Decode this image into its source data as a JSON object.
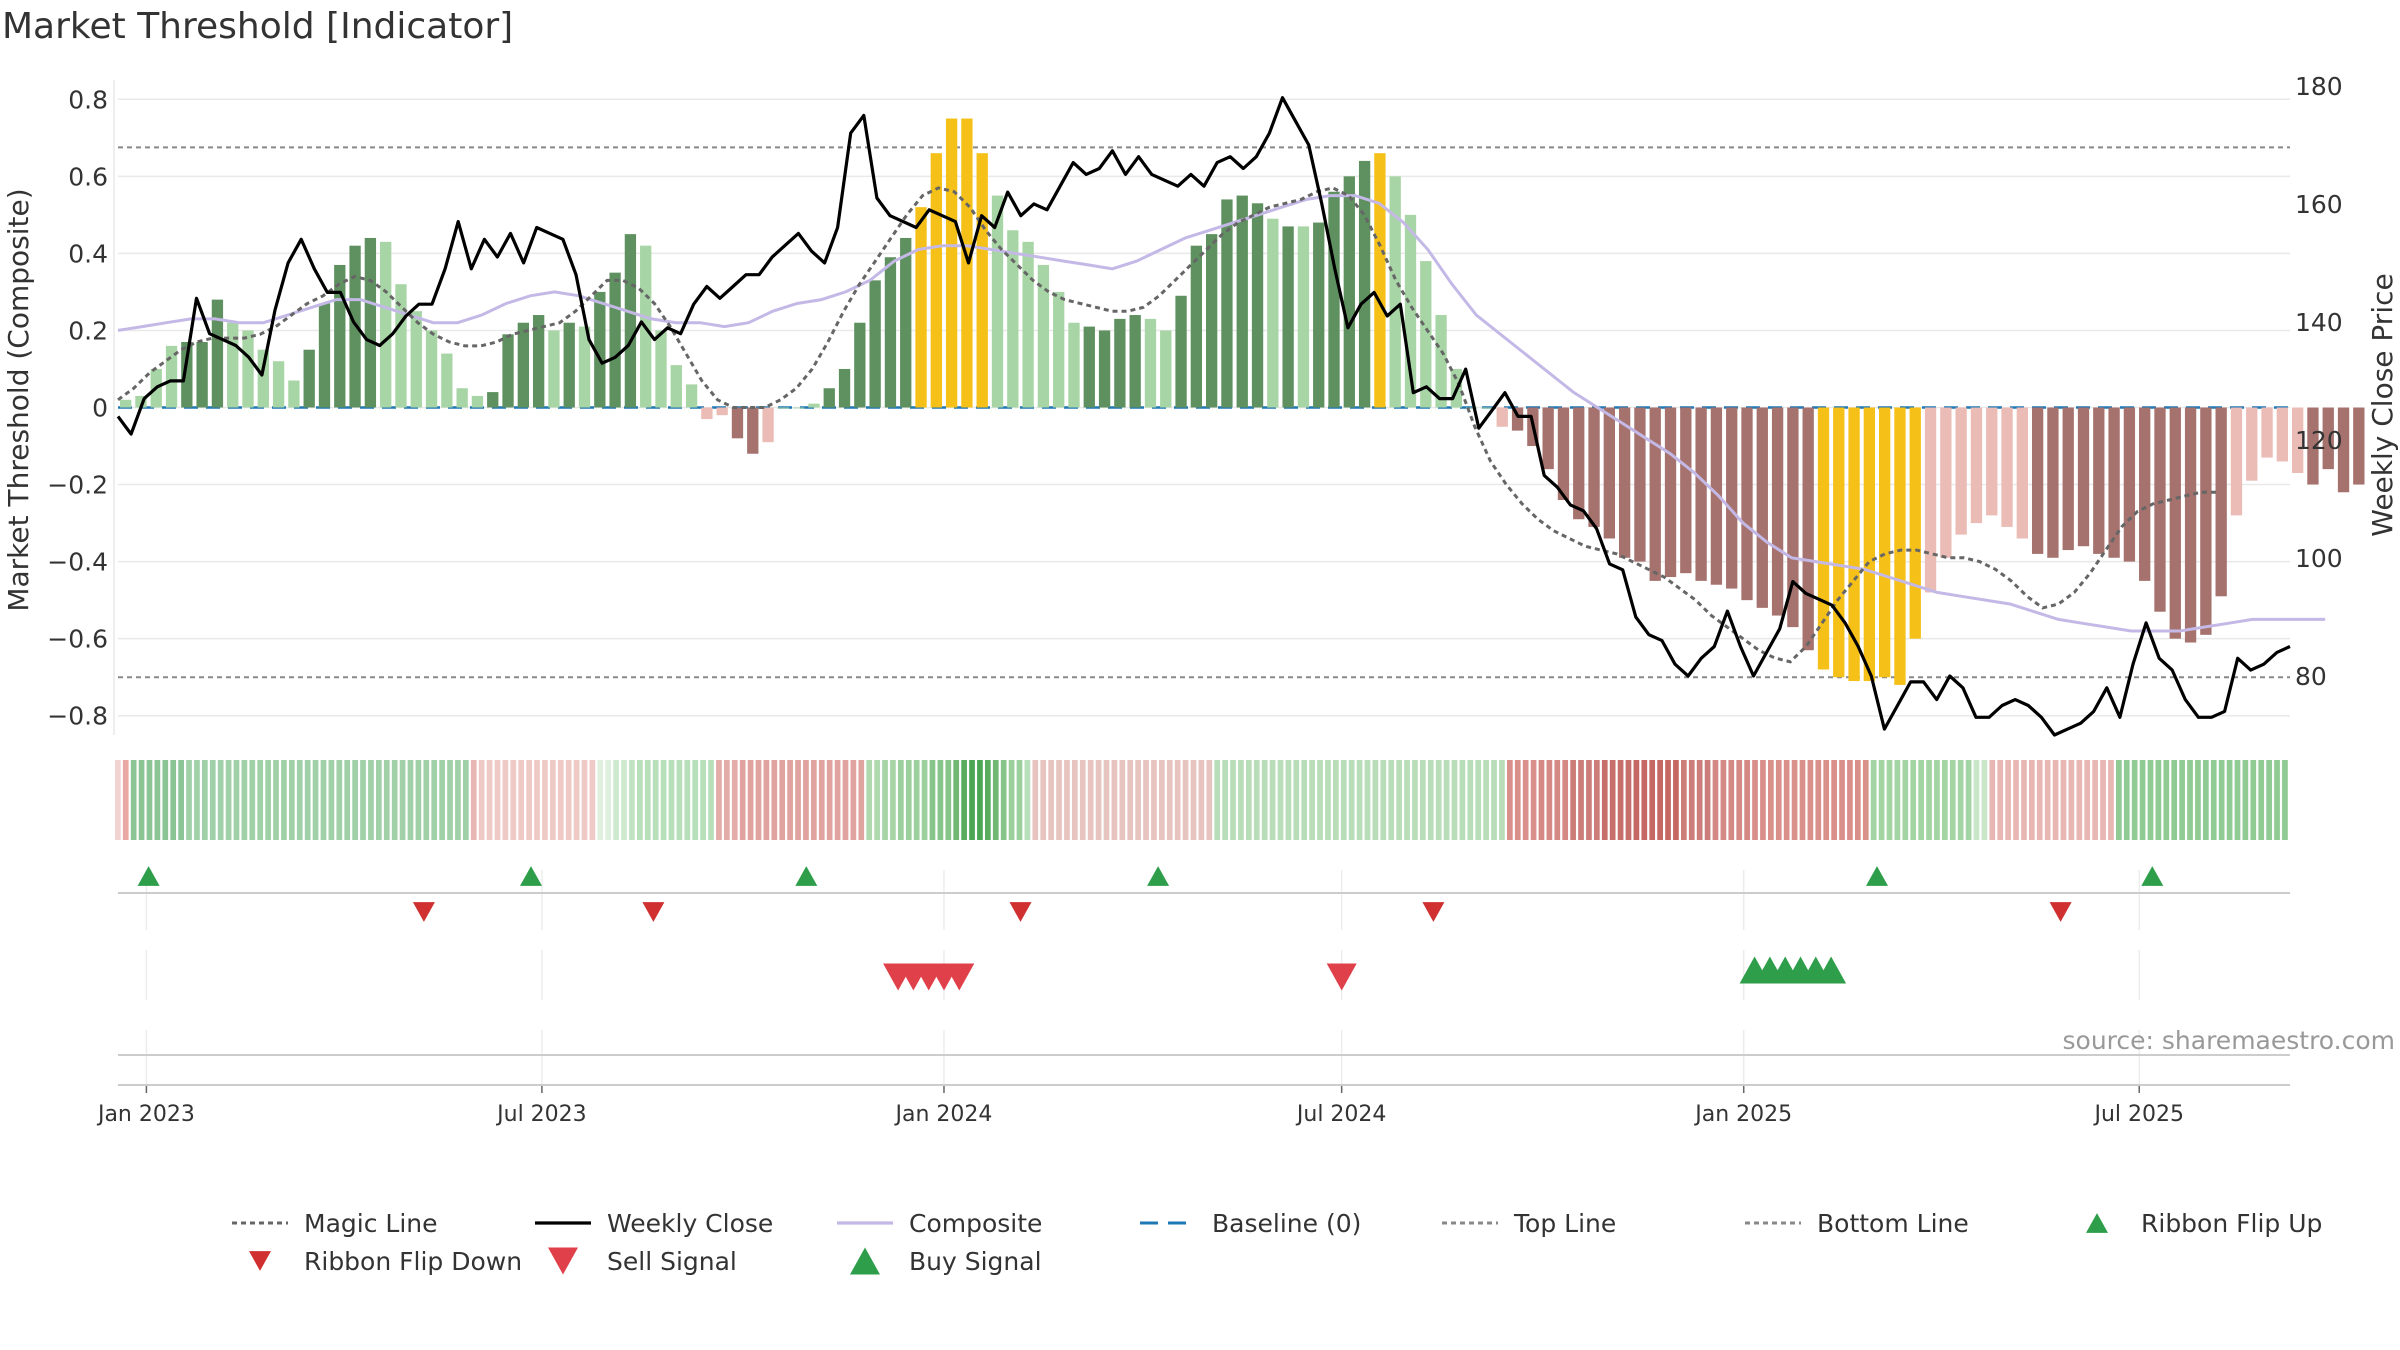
{
  "chart_data": {
    "type": "bar",
    "title": "Market Threshold [Indicator]",
    "ylabel": "Market Threshold (Composite)",
    "y2label": "Weekly Close Price",
    "source": "source: sharemaestro.com",
    "x_start": "2022-12-19",
    "x_end": "2025-09-08",
    "xticks": [
      "Jan 2023",
      "Jul 2023",
      "Jan 2024",
      "Jul 2024",
      "Jan 2025",
      "Jul 2025"
    ],
    "ylim": [
      -0.85,
      0.85
    ],
    "yticks": [
      -0.8,
      -0.6,
      -0.4,
      -0.2,
      0,
      0.2,
      0.4,
      0.6,
      0.8
    ],
    "ytick_labels": [
      "−0.8",
      "−0.6",
      "−0.4",
      "−0.2",
      "0",
      "0.2",
      "0.4",
      "0.6",
      "0.8"
    ],
    "y2lim": [
      70,
      181
    ],
    "y2ticks": [
      80,
      100,
      120,
      140,
      160,
      180
    ],
    "top_line": 0.675,
    "bottom_line": -0.7,
    "baseline": 0,
    "grid": true,
    "legend_position": "bottom",
    "colors": {
      "strong_green": "#5f9160",
      "light_green": "#a8d5a5",
      "strong_red": "#a6726e",
      "light_red": "#ebbcb6",
      "extreme": "#f5c017",
      "weekly_close": "#000000",
      "magic_line": "#666666",
      "composite": "#c4b9e6",
      "baseline": "#1f77b4",
      "ribbon_flip_up": "#2e9e4a",
      "ribbon_flip_down": "#d03030",
      "sell_signal": "#e0404a",
      "buy_signal": "#2e9e4a"
    },
    "bars": {
      "values": [
        0.02,
        0.03,
        0.1,
        0.16,
        0.17,
        0.17,
        0.28,
        0.22,
        0.2,
        0.15,
        0.12,
        0.07,
        0.15,
        0.27,
        0.37,
        0.42,
        0.44,
        0.43,
        0.32,
        0.25,
        0.2,
        0.14,
        0.05,
        0.03,
        0.04,
        0.19,
        0.22,
        0.24,
        0.2,
        0.22,
        0.21,
        0.3,
        0.35,
        0.45,
        0.42,
        0.2,
        0.11,
        0.06,
        -0.03,
        -0.02,
        -0.08,
        -0.12,
        -0.09,
        0.0,
        0.0,
        0.01,
        0.05,
        0.1,
        0.22,
        0.33,
        0.39,
        0.44,
        0.52,
        0.66,
        0.75,
        0.75,
        0.66,
        0.55,
        0.46,
        0.43,
        0.37,
        0.3,
        0.22,
        0.21,
        0.2,
        0.23,
        0.24,
        0.23,
        0.2,
        0.29,
        0.42,
        0.45,
        0.54,
        0.55,
        0.53,
        0.49,
        0.47,
        0.47,
        0.48,
        0.56,
        0.6,
        0.64,
        0.66,
        0.6,
        0.5,
        0.38,
        0.24,
        0.1,
        0.0,
        0.0,
        -0.05,
        -0.06,
        -0.1,
        -0.16,
        -0.24,
        -0.29,
        -0.31,
        -0.34,
        -0.39,
        -0.4,
        -0.45,
        -0.44,
        -0.43,
        -0.45,
        -0.46,
        -0.47,
        -0.5,
        -0.52,
        -0.54,
        -0.57,
        -0.63,
        -0.68,
        -0.7,
        -0.71,
        -0.71,
        -0.7,
        -0.72,
        -0.6,
        -0.48,
        -0.39,
        -0.33,
        -0.3,
        -0.28,
        -0.31,
        -0.34,
        -0.38,
        -0.39,
        -0.37,
        -0.36,
        -0.38,
        -0.39,
        -0.4,
        -0.45,
        -0.53,
        -0.6,
        -0.61,
        -0.59,
        -0.49,
        -0.28,
        -0.19,
        -0.13,
        -0.14,
        -0.17,
        -0.2,
        -0.16,
        -0.22,
        -0.2
      ],
      "classes": [
        "LG",
        "LG",
        "LG",
        "LG",
        "SG",
        "SG",
        "SG",
        "LG",
        "LG",
        "LG",
        "LG",
        "LG",
        "SG",
        "SG",
        "SG",
        "SG",
        "SG",
        "LG",
        "LG",
        "LG",
        "LG",
        "LG",
        "LG",
        "LG",
        "SG",
        "SG",
        "SG",
        "SG",
        "LG",
        "SG",
        "LG",
        "SG",
        "SG",
        "SG",
        "LG",
        "LG",
        "LG",
        "LG",
        "LR",
        "LR",
        "SR",
        "SR",
        "LR",
        "LG",
        "LG",
        "LG",
        "SG",
        "SG",
        "SG",
        "SG",
        "SG",
        "SG",
        "Y",
        "Y",
        "Y",
        "Y",
        "Y",
        "LG",
        "LG",
        "LG",
        "LG",
        "LG",
        "LG",
        "SG",
        "SG",
        "SG",
        "SG",
        "LG",
        "LG",
        "SG",
        "SG",
        "SG",
        "SG",
        "SG",
        "SG",
        "LG",
        "SG",
        "LG",
        "SG",
        "SG",
        "SG",
        "SG",
        "Y",
        "LG",
        "LG",
        "LG",
        "LG",
        "LG",
        "LG",
        "LG",
        "LR",
        "SR",
        "SR",
        "SR",
        "SR",
        "SR",
        "SR",
        "SR",
        "SR",
        "SR",
        "SR",
        "SR",
        "SR",
        "SR",
        "SR",
        "SR",
        "SR",
        "SR",
        "SR",
        "SR",
        "SR",
        "Y",
        "Y",
        "Y",
        "Y",
        "Y",
        "Y",
        "Y",
        "LR",
        "LR",
        "LR",
        "LR",
        "LR",
        "LR",
        "LR",
        "SR",
        "SR",
        "SR",
        "SR",
        "SR",
        "SR",
        "SR",
        "SR",
        "SR",
        "SR",
        "SR",
        "SR",
        "SR",
        "LR",
        "LR",
        "LR",
        "LR",
        "LR",
        "SR",
        "SR",
        "SR",
        "SR",
        "SR",
        "LR"
      ]
    },
    "weekly_close": [
      124,
      121,
      127,
      129,
      130,
      130,
      144,
      138,
      137,
      136,
      134,
      131,
      142,
      150,
      154,
      149,
      145,
      145,
      140,
      137,
      136,
      138,
      141,
      143,
      143,
      149,
      157,
      149,
      154,
      151,
      155,
      150,
      156,
      155,
      154,
      148,
      137,
      133,
      134,
      136,
      140,
      137,
      139,
      138,
      143,
      146,
      144,
      146,
      148,
      148,
      151,
      153,
      155,
      152,
      150,
      156,
      172,
      175,
      161,
      158,
      157,
      156,
      159,
      158,
      157,
      150,
      158,
      156,
      162,
      158,
      160,
      159,
      163,
      167,
      165,
      166,
      169,
      165,
      168,
      165,
      164,
      163,
      165,
      163,
      167,
      168,
      166,
      168,
      172,
      178,
      174,
      170,
      160,
      149,
      139,
      143,
      145,
      141,
      143,
      128,
      129,
      127,
      127,
      132,
      122,
      125,
      128,
      124,
      124,
      114,
      112,
      109,
      108,
      105,
      99,
      98,
      90,
      87,
      86,
      82,
      80,
      83,
      85,
      91,
      85,
      80,
      84,
      88,
      96,
      94,
      93,
      92,
      89,
      85,
      80,
      71,
      75,
      79,
      79,
      76,
      80,
      78,
      73,
      73,
      75,
      76,
      75,
      73,
      70,
      71,
      72,
      74,
      78,
      73,
      82,
      89,
      83,
      81,
      76,
      73,
      73,
      74,
      83,
      81,
      82,
      84,
      85
    ]
  },
  "chart_extras": {
    "magic_line": [
      0.02,
      0.05,
      0.09,
      0.12,
      0.15,
      0.17,
      0.18,
      0.18,
      0.18,
      0.19,
      0.21,
      0.24,
      0.27,
      0.29,
      0.32,
      0.34,
      0.33,
      0.3,
      0.26,
      0.22,
      0.19,
      0.17,
      0.16,
      0.16,
      0.17,
      0.19,
      0.2,
      0.21,
      0.22,
      0.25,
      0.29,
      0.33,
      0.33,
      0.31,
      0.27,
      0.21,
      0.14,
      0.07,
      0.02,
      0.0,
      0.0,
      0.0,
      0.02,
      0.05,
      0.1,
      0.17,
      0.25,
      0.32,
      0.38,
      0.44,
      0.5,
      0.55,
      0.57,
      0.56,
      0.52,
      0.46,
      0.41,
      0.37,
      0.33,
      0.3,
      0.28,
      0.27,
      0.26,
      0.25,
      0.25,
      0.26,
      0.29,
      0.33,
      0.37,
      0.41,
      0.45,
      0.48,
      0.5,
      0.52,
      0.53,
      0.54,
      0.56,
      0.57,
      0.55,
      0.5,
      0.42,
      0.33,
      0.26,
      0.2,
      0.14,
      0.06,
      -0.05,
      -0.14,
      -0.2,
      -0.25,
      -0.29,
      -0.32,
      -0.34,
      -0.36,
      -0.37,
      -0.38,
      -0.4,
      -0.42,
      -0.44,
      -0.47,
      -0.5,
      -0.54,
      -0.57,
      -0.6,
      -0.63,
      -0.65,
      -0.66,
      -0.62,
      -0.56,
      -0.5,
      -0.45,
      -0.4,
      -0.38,
      -0.37,
      -0.37,
      -0.38,
      -0.39,
      -0.39,
      -0.4,
      -0.42,
      -0.45,
      -0.49,
      -0.52,
      -0.51,
      -0.48,
      -0.43,
      -0.37,
      -0.31,
      -0.27,
      -0.25,
      -0.24,
      -0.23,
      -0.22,
      -0.22
    ],
    "magic_line_x": [
      0,
      2,
      4,
      6,
      8,
      10,
      12,
      14,
      16,
      18,
      20,
      22,
      24,
      26,
      28,
      30,
      32,
      34,
      36,
      38,
      40,
      42,
      44,
      46,
      48,
      50,
      52,
      54,
      56,
      58,
      60,
      62,
      64,
      66,
      68,
      70,
      72,
      74,
      76,
      78,
      80,
      82,
      84,
      86,
      88,
      90,
      92,
      94,
      96,
      98,
      100,
      102,
      104,
      106,
      108,
      110,
      112,
      114,
      116,
      118,
      120,
      122,
      124,
      126,
      128,
      130,
      132,
      134,
      136,
      138,
      140,
      142,
      144,
      146,
      148,
      150,
      152,
      154,
      156,
      158,
      160,
      162,
      164,
      166,
      168,
      170,
      172,
      174,
      176,
      178,
      180,
      182,
      184,
      186,
      188,
      190,
      192,
      194,
      196,
      198,
      200,
      202,
      204,
      206,
      208,
      210,
      212,
      214,
      216,
      218,
      220,
      222,
      224,
      226,
      228,
      230,
      232,
      234,
      236,
      238,
      240,
      242,
      244,
      246,
      248,
      250,
      252,
      254,
      256,
      258,
      260,
      262,
      264,
      266,
      268,
      270
    ],
    "composite": [
      0.2,
      0.21,
      0.22,
      0.23,
      0.23,
      0.22,
      0.22,
      0.24,
      0.26,
      0.28,
      0.28,
      0.26,
      0.24,
      0.22,
      0.22,
      0.24,
      0.27,
      0.29,
      0.3,
      0.29,
      0.27,
      0.25,
      0.23,
      0.22,
      0.22,
      0.21,
      0.22,
      0.25,
      0.27,
      0.28,
      0.3,
      0.33,
      0.38,
      0.41,
      0.42,
      0.42,
      0.41,
      0.4,
      0.39,
      0.38,
      0.37,
      0.36,
      0.38,
      0.41,
      0.44,
      0.46,
      0.48,
      0.5,
      0.52,
      0.54,
      0.55,
      0.55,
      0.53,
      0.48,
      0.41,
      0.32,
      0.24,
      0.19,
      0.14,
      0.09,
      0.04,
      0.0,
      -0.04,
      -0.08,
      -0.12,
      -0.17,
      -0.23,
      -0.3,
      -0.35,
      -0.39,
      -0.4,
      -0.41,
      -0.42,
      -0.44,
      -0.46,
      -0.48,
      -0.49,
      -0.5,
      -0.51,
      -0.53,
      -0.55,
      -0.56,
      -0.57,
      -0.58,
      -0.58,
      -0.58,
      -0.57,
      -0.56,
      -0.55,
      -0.55,
      -0.55,
      -0.55
    ],
    "composite_x": [
      0,
      3,
      6,
      9,
      12,
      15,
      18,
      21,
      24,
      27,
      30,
      33,
      36,
      39,
      42,
      45,
      48,
      51,
      54,
      57,
      60,
      63,
      66,
      69,
      72,
      75,
      78,
      81,
      84,
      87,
      90,
      93,
      96,
      99,
      102,
      105,
      108,
      111,
      114,
      117,
      120,
      123,
      126,
      129,
      132,
      135,
      138,
      141,
      144,
      147,
      150,
      153,
      156,
      159,
      162,
      165,
      168,
      171,
      174,
      177,
      180,
      183,
      186,
      189,
      192,
      195,
      198,
      201,
      204,
      207,
      210,
      213,
      216,
      219,
      222,
      225,
      228,
      231,
      234,
      237,
      240,
      243,
      246,
      249,
      252,
      255,
      258,
      261,
      264,
      267,
      270,
      273
    ],
    "ribbon": {
      "colors": [
        "#f1d4d2",
        "#e9a8a4",
        "#8bc596",
        "#8bc596",
        "#8bc596",
        "#8bc596",
        "#8bc596",
        "#8bc596",
        "#8bc596",
        "#9fd0a7",
        "#9fd0a7",
        "#9fd0a7",
        "#9fd0a7",
        "#9fd0a7",
        "#9fd0a7",
        "#9fd0a7",
        "#9fd0a7",
        "#9fd0a7",
        "#9fd0a7",
        "#9fd0a7",
        "#9fd0a7",
        "#9fd0a7",
        "#9fd0a7",
        "#9fd0a7",
        "#9fd0a7",
        "#9fd0a7",
        "#9fd0a7",
        "#9fd0a7",
        "#9fd0a7",
        "#9fd0a7",
        "#9fd0a7",
        "#9fd0a7",
        "#9fd0a7",
        "#9fd0a7",
        "#9fd0a7",
        "#9fd0a7",
        "#9fd0a7",
        "#9fd0a7",
        "#9fd0a7",
        "#9fd0a7",
        "#9fd0a7",
        "#9fd0a7",
        "#9fd0a7",
        "#9fd0a7",
        "#9fd0a7",
        "#e8b7b3",
        "#efc9c6",
        "#efc9c6",
        "#efc9c6",
        "#efc9c6",
        "#efc9c6",
        "#efc9c6",
        "#efc9c6",
        "#efc9c6",
        "#efc9c6",
        "#efc9c6",
        "#efc9c6",
        "#efc9c6",
        "#efc9c6",
        "#efc9c6",
        "#efc9c6",
        "#dff0df",
        "#dff0df",
        "#cfe9cf",
        "#cfe9cf",
        "#c1e3c3",
        "#b7dfb9",
        "#b7dfb9",
        "#b7dfb9",
        "#b7dfb9",
        "#b7dfb9",
        "#b7dfb9",
        "#b7dfb9",
        "#b7dfb9",
        "#b7dfb9",
        "#b7dfb9",
        "#e3aca8",
        "#e3aca8",
        "#e3aca8",
        "#e0a39f",
        "#e0a39f",
        "#e0a39f",
        "#e0a39f",
        "#e0a39f",
        "#e0a39f",
        "#e0a39f",
        "#e0a39f",
        "#e0a39f",
        "#e0a39f",
        "#e0a39f",
        "#e0a39f",
        "#e0a39f",
        "#e0a39f",
        "#e0a39f",
        "#e0a39f",
        "#aed8ad",
        "#aed8ad",
        "#a7d5a6",
        "#a7d5a6",
        "#9bcf9b",
        "#9bcf9b",
        "#9bcf9b",
        "#9bcf9b",
        "#86c489",
        "#86c489",
        "#86c489",
        "#70b874",
        "#5aad5f",
        "#4aa653",
        "#4aa653",
        "#5aad5f",
        "#70b874",
        "#86c489",
        "#9bcf9b",
        "#9bcf9b",
        "#b7dfb9",
        "#e8c4c1",
        "#e8c4c1",
        "#e8c4c1",
        "#e8c4c1",
        "#e8c4c1",
        "#e8c4c1",
        "#e8c4c1",
        "#e8c4c1",
        "#e8c4c1",
        "#e8c4c1",
        "#e8c4c1",
        "#e8c4c1",
        "#e8c4c1",
        "#e8c4c1",
        "#e8c4c1",
        "#e8c4c1",
        "#e8c4c1",
        "#e8c4c1",
        "#e8c4c1",
        "#e8c4c1",
        "#e8c4c1",
        "#e8c4c1",
        "#e8c4c1",
        "#b8ddb8",
        "#b8ddb8",
        "#b8ddb8",
        "#b8ddb8",
        "#b8ddb8",
        "#b8ddb8",
        "#b8ddb8",
        "#b8ddb8",
        "#b8ddb8",
        "#b8ddb8",
        "#b8ddb8",
        "#b8ddb8",
        "#b8ddb8",
        "#b8ddb8",
        "#b8ddb8",
        "#b8ddb8",
        "#b8ddb8",
        "#b8ddb8",
        "#b8ddb8",
        "#b8ddb8",
        "#b8ddb8",
        "#b8ddb8",
        "#b8ddb8",
        "#b8ddb8",
        "#b8ddb8",
        "#b8ddb8",
        "#b8ddb8",
        "#b8ddb8",
        "#b8ddb8",
        "#b8ddb8",
        "#b8ddb8",
        "#b8ddb8",
        "#b8ddb8",
        "#b8ddb8",
        "#b8ddb8",
        "#b8ddb8",
        "#b8ddb8",
        "#d9908b",
        "#d9908b",
        "#d9908b",
        "#d9908b",
        "#d48985",
        "#d48985",
        "#d48985",
        "#d48985",
        "#cc7d79",
        "#cc7d79",
        "#cc7d79",
        "#cc7d79",
        "#c76f6b",
        "#c76f6b",
        "#c76f6b",
        "#c76f6b",
        "#c56763",
        "#c56763",
        "#c56763",
        "#c56763",
        "#c56763",
        "#c56763",
        "#cc7d79",
        "#cc7d79",
        "#cc7d79",
        "#cc7d79",
        "#d48985",
        "#d48985",
        "#d48985",
        "#d48985",
        "#d48985",
        "#d9908b",
        "#d9908b",
        "#d9908b",
        "#d9908b",
        "#d9908b",
        "#d9908b",
        "#d9908b",
        "#d9908b",
        "#d9908b",
        "#d9908b",
        "#d9908b",
        "#d9908b",
        "#d9908b",
        "#d9908b",
        "#d9908b",
        "#a3d4a3",
        "#a3d4a3",
        "#a3d4a3",
        "#a3d4a3",
        "#a3d4a3",
        "#a3d4a3",
        "#a3d4a3",
        "#a3d4a3",
        "#a3d4a3",
        "#a3d4a3",
        "#a3d4a3",
        "#a3d4a3",
        "#a3d4a3",
        "#c9e6c9",
        "#c9e6c9",
        "#e8b7b3",
        "#e8b7b3",
        "#e8b7b3",
        "#e8b7b3",
        "#e8b7b3",
        "#e8b7b3",
        "#e8b7b3",
        "#e8b7b3",
        "#e8b7b3",
        "#e8b7b3",
        "#e8b7b3",
        "#e8b7b3",
        "#e8b7b3",
        "#e8b7b3",
        "#e8b7b3",
        "#e8b7b3",
        "#8fcb93",
        "#8fcb93",
        "#8fcb93",
        "#8fcb93",
        "#8fcb93",
        "#8fcb93",
        "#8fcb93",
        "#8fcb93",
        "#8fcb93",
        "#8fcb93",
        "#8fcb93",
        "#8fcb93",
        "#8fcb93",
        "#8fcb93",
        "#8fcb93",
        "#8fcb93",
        "#8fcb93",
        "#8fcb93",
        "#8fcb93",
        "#8fcb93",
        "#8fcb93",
        "#8fcb93"
      ],
      "flip_up": [
        "2023-01-02",
        "2023-06-26",
        "2023-10-30",
        "2024-04-08",
        "2025-03-03",
        "2025-07-07"
      ],
      "flip_down": [
        "2023-05-08",
        "2023-08-21",
        "2024-02-05",
        "2024-08-12",
        "2025-05-26"
      ],
      "sell_signals": [
        "2023-12-11",
        "2023-12-18",
        "2023-12-25",
        "2024-01-01",
        "2024-01-08",
        "2024-07-01"
      ],
      "buy_signals": [
        "2025-01-06",
        "2025-01-13",
        "2025-01-20",
        "2025-01-27",
        "2025-02-03",
        "2025-02-10"
      ]
    }
  },
  "legend": [
    {
      "label": "Magic Line",
      "symbol": "dotted",
      "color": "#666666"
    },
    {
      "label": "Weekly Close",
      "symbol": "line",
      "color": "#000000"
    },
    {
      "label": "Composite",
      "symbol": "line",
      "color": "#c4b9e6"
    },
    {
      "label": "Baseline (0)",
      "symbol": "dashed",
      "color": "#1f77b4"
    },
    {
      "label": "Top Line",
      "symbol": "dotted",
      "color": "#888888"
    },
    {
      "label": "Bottom Line",
      "symbol": "dotted",
      "color": "#888888"
    },
    {
      "label": "Ribbon Flip Up",
      "symbol": "triangle-up-small",
      "color": "#2e9e4a"
    },
    {
      "label": "Ribbon Flip Down",
      "symbol": "triangle-down-small",
      "color": "#d03030"
    },
    {
      "label": "Sell Signal",
      "symbol": "triangle-down",
      "color": "#e0404a"
    },
    {
      "label": "Buy Signal",
      "symbol": "triangle-up",
      "color": "#2e9e4a"
    }
  ]
}
